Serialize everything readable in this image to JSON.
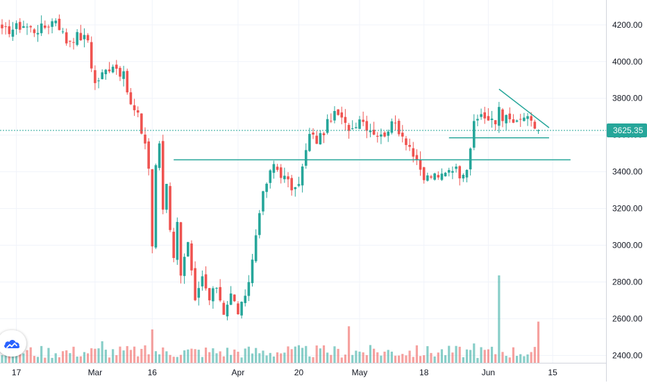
{
  "chart_data": {
    "type": "candlestick",
    "y_axis": {
      "position": "right",
      "range": [
        2360,
        4290
      ],
      "ticks": [
        "2400.00",
        "2600.00",
        "2800.00",
        "3000.00",
        "3200.00",
        "3400.00",
        "3600.00",
        "3800.00",
        "4000.00",
        "4200.00"
      ],
      "tick_values": [
        2400,
        2600,
        2800,
        3000,
        3200,
        3400,
        3600,
        3800,
        4000,
        4200
      ]
    },
    "x_axis": {
      "range": [
        0,
        170
      ],
      "labels": [
        {
          "text": "17",
          "bar": 4
        },
        {
          "text": "Mar",
          "bar": 26
        },
        {
          "text": "16",
          "bar": 42
        },
        {
          "text": "Apr",
          "bar": 66
        },
        {
          "text": "20",
          "bar": 83
        },
        {
          "text": "May",
          "bar": 100
        },
        {
          "text": "18",
          "bar": 118
        },
        {
          "text": "Jun",
          "bar": 136
        },
        {
          "text": "15",
          "bar": 154
        }
      ]
    },
    "current_price": {
      "value": 3625.35,
      "label": "3625.35"
    },
    "grid": true,
    "colors": {
      "up": "#26a69a",
      "down": "#ef5350",
      "volume_up": "#26a69a",
      "volume_down": "#ef5350",
      "drawing": "#26a69a",
      "price_line": "#26a69a",
      "grid": "#f0f3fa"
    },
    "price_path": [
      [
        0,
        4160
      ],
      [
        3,
        4180
      ],
      [
        6,
        4200
      ],
      [
        9,
        4170
      ],
      [
        12,
        4190
      ],
      [
        15,
        4235
      ],
      [
        18,
        4110
      ],
      [
        21,
        4140
      ],
      [
        24,
        4120
      ],
      [
        25,
        3980
      ],
      [
        26,
        3880
      ],
      [
        28,
        3930
      ],
      [
        31,
        3990
      ],
      [
        34,
        3920
      ],
      [
        36,
        3760
      ],
      [
        38,
        3700
      ],
      [
        39,
        3620
      ],
      [
        40,
        3560
      ],
      [
        41,
        3420
      ],
      [
        42,
        3000
      ],
      [
        43,
        3420
      ],
      [
        44,
        3560
      ],
      [
        45,
        3200
      ],
      [
        46,
        3350
      ],
      [
        47,
        3100
      ],
      [
        48,
        2920
      ],
      [
        49,
        3150
      ],
      [
        50,
        2850
      ],
      [
        52,
        3000
      ],
      [
        54,
        2680
      ],
      [
        56,
        2820
      ],
      [
        58,
        2700
      ],
      [
        60,
        2780
      ],
      [
        62,
        2640
      ],
      [
        64,
        2730
      ],
      [
        66,
        2640
      ],
      [
        68,
        2700
      ],
      [
        70,
        2920
      ],
      [
        72,
        3200
      ],
      [
        74,
        3340
      ],
      [
        76,
        3440
      ],
      [
        78,
        3390
      ],
      [
        80,
        3340
      ],
      [
        82,
        3290
      ],
      [
        84,
        3420
      ],
      [
        86,
        3600
      ],
      [
        88,
        3570
      ],
      [
        90,
        3620
      ],
      [
        92,
        3700
      ],
      [
        94,
        3710
      ],
      [
        96,
        3650
      ],
      [
        98,
        3640
      ],
      [
        100,
        3700
      ],
      [
        102,
        3650
      ],
      [
        104,
        3620
      ],
      [
        106,
        3590
      ],
      [
        108,
        3640
      ],
      [
        110,
        3660
      ],
      [
        112,
        3600
      ],
      [
        114,
        3540
      ],
      [
        116,
        3440
      ],
      [
        118,
        3360
      ],
      [
        120,
        3380
      ],
      [
        122,
        3360
      ],
      [
        124,
        3410
      ],
      [
        126,
        3430
      ],
      [
        128,
        3390
      ],
      [
        130,
        3430
      ],
      [
        132,
        3650
      ],
      [
        134,
        3720
      ],
      [
        136,
        3680
      ],
      [
        138,
        3660
      ],
      [
        139,
        3760
      ],
      [
        140,
        3700
      ],
      [
        142,
        3680
      ],
      [
        144,
        3660
      ],
      [
        146,
        3700
      ],
      [
        148,
        3660
      ],
      [
        150,
        3625
      ]
    ],
    "volume_spikes": [
      {
        "bar": 139,
        "value": 2800
      },
      {
        "bar": 97,
        "value": 1170
      },
      {
        "bar": 28,
        "value": 690
      },
      {
        "bar": 42,
        "value": 1070
      },
      {
        "bar": 150,
        "value": 1320
      },
      {
        "bar": 132,
        "value": 620
      }
    ],
    "drawings": [
      {
        "kind": "trendline",
        "from": [
          48,
          3465
        ],
        "to": [
          159,
          3465
        ]
      },
      {
        "kind": "trendline",
        "from": [
          125,
          3585
        ],
        "to": [
          153,
          3585
        ]
      },
      {
        "kind": "trendline",
        "from": [
          139,
          3850
        ],
        "to": [
          153,
          3640
        ]
      }
    ]
  }
}
